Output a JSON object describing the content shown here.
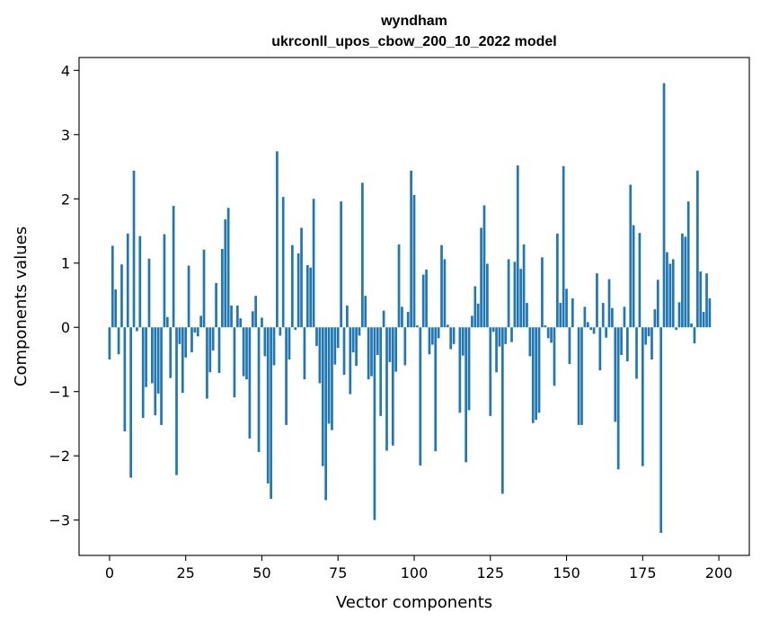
{
  "chart_data": {
    "type": "bar",
    "title_lines": [
      "wyndham",
      "ukrconll_upos_cbow_200_10_2022 model"
    ],
    "xlabel": "Vector components",
    "ylabel": "Components values",
    "xlim": [
      -10,
      210
    ],
    "ylim": [
      -3.55,
      4.2
    ],
    "xticks": [
      0,
      25,
      50,
      75,
      100,
      125,
      150,
      175,
      200
    ],
    "yticks": [
      -3,
      -2,
      -1,
      0,
      1,
      2,
      3,
      4
    ],
    "grid": false,
    "bar_color": "#1f77b4",
    "values": [
      -0.5,
      1.27,
      0.59,
      -0.42,
      0.98,
      -1.62,
      1.46,
      -2.34,
      2.44,
      -0.06,
      1.42,
      -1.41,
      -0.93,
      1.07,
      -0.87,
      -1.37,
      -1.03,
      -1.52,
      1.45,
      0.16,
      -0.79,
      1.89,
      -2.3,
      -0.26,
      -1.02,
      -0.47,
      0.96,
      -0.39,
      -0.08,
      -0.14,
      0.18,
      1.21,
      -1.11,
      -0.7,
      -0.36,
      0.69,
      -0.71,
      1.22,
      1.68,
      1.86,
      0.34,
      -1.09,
      0.34,
      0.14,
      -0.76,
      -0.81,
      -1.73,
      0.25,
      0.49,
      -1.94,
      0.15,
      -0.45,
      -2.43,
      -2.67,
      -0.59,
      2.74,
      -0.13,
      2.03,
      -1.52,
      -0.5,
      1.28,
      -0.04,
      1.15,
      1.55,
      -0.81,
      0.97,
      0.93,
      2.0,
      -0.29,
      -0.87,
      -2.16,
      -2.69,
      -1.5,
      -1.6,
      -0.58,
      -0.32,
      1.96,
      -0.74,
      0.34,
      -1.04,
      -0.39,
      -0.6,
      -0.13,
      2.25,
      0.49,
      -0.81,
      -0.76,
      -3.0,
      -0.43,
      -1.38,
      0.26,
      -1.92,
      -0.54,
      -1.84,
      -0.69,
      1.29,
      0.32,
      -0.59,
      0.24,
      2.44,
      2.06,
      0.03,
      -2.15,
      0.82,
      0.9,
      -0.42,
      -0.27,
      -1.93,
      -0.17,
      1.28,
      1.06,
      0.04,
      -0.34,
      -0.26,
      0.0,
      -1.33,
      -0.44,
      -2.1,
      -1.29,
      0.18,
      0.64,
      0.37,
      1.55,
      1.9,
      0.99,
      -1.38,
      -0.07,
      -0.7,
      -0.3,
      -2.59,
      -0.26,
      1.06,
      -0.23,
      1.02,
      2.52,
      0.91,
      1.29,
      0.38,
      -0.45,
      -1.49,
      -1.44,
      -1.33,
      1.09,
      0.03,
      -0.17,
      -0.24,
      -0.91,
      1.46,
      0.38,
      2.51,
      0.6,
      -0.57,
      0.45,
      0.0,
      -1.52,
      -1.52,
      0.32,
      0.08,
      -0.04,
      -0.1,
      0.84,
      -0.67,
      0.38,
      -0.16,
      0.75,
      0.3,
      -1.47,
      -2.21,
      -0.43,
      0.32,
      -0.53,
      2.22,
      1.59,
      -0.8,
      1.47,
      -2.16,
      -0.27,
      -0.14,
      -0.5,
      0.28,
      0.74,
      -3.2,
      3.8,
      1.17,
      0.99,
      1.06,
      -0.04,
      0.39,
      1.46,
      1.41,
      1.96,
      0.06,
      -0.25,
      2.44,
      0.87,
      0.24,
      0.84,
      0.45
    ]
  }
}
